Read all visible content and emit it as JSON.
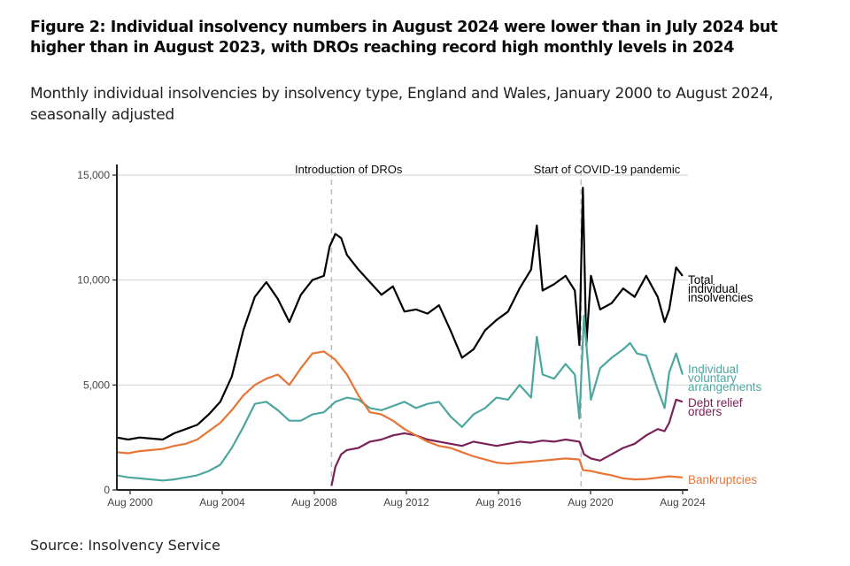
{
  "title": "Figure 2: Individual insolvency numbers in August 2024 were lower than in July 2024 but higher than in August 2023, with DROs reaching record high monthly levels in 2024",
  "subtitle": "Monthly individual insolvencies by insolvency type, England and Wales, January 2000 to August 2024, seasonally adjusted",
  "source": "Source: Insolvency Service",
  "chart_data": {
    "type": "line",
    "title": "Monthly individual insolvencies by insolvency type, England and Wales, January 2000 to August 2024, seasonally adjusted",
    "xlabel": "",
    "ylabel": "",
    "xlim": [
      2000.0,
      2024.67
    ],
    "ylim": [
      0,
      15000
    ],
    "grid": true,
    "x_ticks": [
      {
        "value": 2000.583,
        "label": "Aug 2000"
      },
      {
        "value": 2004.583,
        "label": "Aug 2004"
      },
      {
        "value": 2008.583,
        "label": "Aug 2008"
      },
      {
        "value": 2012.583,
        "label": "Aug 2012"
      },
      {
        "value": 2016.583,
        "label": "Aug 2016"
      },
      {
        "value": 2020.583,
        "label": "Aug 2020"
      },
      {
        "value": 2024.583,
        "label": "Aug 2024"
      }
    ],
    "y_ticks": [
      {
        "value": 0,
        "label": "0"
      },
      {
        "value": 5000,
        "label": "5,000"
      },
      {
        "value": 10000,
        "label": "10,000"
      },
      {
        "value": 15000,
        "label": "15,000"
      }
    ],
    "annotations": [
      {
        "x": 2009.33,
        "label": "Introduction of DROs"
      },
      {
        "x": 2020.17,
        "label": "Start of COVID-19 pandemic"
      }
    ],
    "legend": "direct-labels-right",
    "series": [
      {
        "name": "Total individual insolvencies",
        "label_lines": [
          "Total",
          "individual",
          "insolvencies"
        ],
        "color": "#000000",
        "x": [
          2000.0,
          2000.5,
          2001.0,
          2001.5,
          2002.0,
          2002.5,
          2003.0,
          2003.5,
          2004.0,
          2004.5,
          2005.0,
          2005.5,
          2006.0,
          2006.5,
          2007.0,
          2007.5,
          2008.0,
          2008.5,
          2009.0,
          2009.25,
          2009.5,
          2009.75,
          2010.0,
          2010.5,
          2011.0,
          2011.5,
          2012.0,
          2012.5,
          2013.0,
          2013.5,
          2014.0,
          2014.5,
          2015.0,
          2015.5,
          2016.0,
          2016.5,
          2017.0,
          2017.5,
          2018.0,
          2018.25,
          2018.5,
          2019.0,
          2019.5,
          2019.9,
          2020.1,
          2020.25,
          2020.4,
          2020.6,
          2021.0,
          2021.5,
          2022.0,
          2022.5,
          2023.0,
          2023.5,
          2023.8,
          2024.0,
          2024.3,
          2024.58
        ],
        "values": [
          2500,
          2400,
          2500,
          2450,
          2400,
          2700,
          2900,
          3100,
          3600,
          4200,
          5400,
          7600,
          9200,
          9900,
          9100,
          8000,
          9300,
          10000,
          10200,
          11600,
          12200,
          12000,
          11200,
          10500,
          9900,
          9300,
          9700,
          8500,
          8600,
          8400,
          8800,
          7600,
          6300,
          6700,
          7600,
          8100,
          8500,
          9600,
          10500,
          12600,
          9500,
          9800,
          10200,
          9500,
          6900,
          14400,
          6900,
          10200,
          8600,
          8900,
          9600,
          9200,
          10200,
          9200,
          8000,
          8600,
          10600,
          10200
        ]
      },
      {
        "name": "Individual voluntary arrangements",
        "label_lines": [
          "Individual",
          "voluntary",
          "arrangements"
        ],
        "color": "#4da79f",
        "x": [
          2000.0,
          2000.5,
          2001.0,
          2001.5,
          2002.0,
          2002.5,
          2003.0,
          2003.5,
          2004.0,
          2004.5,
          2005.0,
          2005.5,
          2006.0,
          2006.5,
          2007.0,
          2007.5,
          2008.0,
          2008.5,
          2009.0,
          2009.5,
          2010.0,
          2010.5,
          2011.0,
          2011.5,
          2012.0,
          2012.5,
          2013.0,
          2013.5,
          2014.0,
          2014.5,
          2015.0,
          2015.5,
          2016.0,
          2016.5,
          2017.0,
          2017.5,
          2018.0,
          2018.25,
          2018.5,
          2019.0,
          2019.5,
          2019.9,
          2020.1,
          2020.3,
          2020.6,
          2021.0,
          2021.5,
          2022.0,
          2022.3,
          2022.6,
          2023.0,
          2023.5,
          2023.8,
          2024.0,
          2024.3,
          2024.58
        ],
        "values": [
          700,
          600,
          550,
          500,
          450,
          500,
          600,
          700,
          900,
          1200,
          2000,
          3000,
          4100,
          4200,
          3800,
          3300,
          3300,
          3600,
          3700,
          4200,
          4400,
          4300,
          3900,
          3800,
          4000,
          4200,
          3900,
          4100,
          4200,
          3500,
          3000,
          3600,
          3900,
          4400,
          4300,
          5000,
          4400,
          7300,
          5500,
          5300,
          6000,
          5500,
          3400,
          8300,
          4300,
          5800,
          6300,
          6700,
          7000,
          6500,
          6400,
          4800,
          3900,
          5600,
          6500,
          5500
        ]
      },
      {
        "name": "Debt relief orders",
        "label_lines": [
          "Debt relief",
          "orders"
        ],
        "color": "#7a2257",
        "x": [
          2009.33,
          2009.5,
          2009.75,
          2010.0,
          2010.5,
          2011.0,
          2011.5,
          2012.0,
          2012.5,
          2013.0,
          2013.5,
          2014.0,
          2014.5,
          2015.0,
          2015.5,
          2016.0,
          2016.5,
          2017.0,
          2017.5,
          2018.0,
          2018.5,
          2019.0,
          2019.5,
          2020.1,
          2020.3,
          2020.6,
          2021.0,
          2021.5,
          2022.0,
          2022.5,
          2023.0,
          2023.5,
          2023.8,
          2024.0,
          2024.3,
          2024.58
        ],
        "values": [
          200,
          1100,
          1700,
          1900,
          2000,
          2300,
          2400,
          2600,
          2700,
          2600,
          2400,
          2300,
          2200,
          2100,
          2300,
          2200,
          2100,
          2200,
          2300,
          2250,
          2350,
          2300,
          2400,
          2300,
          1700,
          1500,
          1400,
          1700,
          2000,
          2200,
          2600,
          2900,
          2800,
          3200,
          4300,
          4200
        ]
      },
      {
        "name": "Bankruptcies",
        "label_lines": [
          "Bankruptcies"
        ],
        "color": "#e87536",
        "x": [
          2000.0,
          2000.5,
          2001.0,
          2001.5,
          2002.0,
          2002.5,
          2003.0,
          2003.5,
          2004.0,
          2004.5,
          2005.0,
          2005.5,
          2006.0,
          2006.5,
          2007.0,
          2007.5,
          2008.0,
          2008.5,
          2009.0,
          2009.5,
          2010.0,
          2010.5,
          2011.0,
          2011.5,
          2012.0,
          2012.5,
          2013.0,
          2013.5,
          2014.0,
          2014.5,
          2015.0,
          2015.5,
          2016.0,
          2016.5,
          2017.0,
          2017.5,
          2018.0,
          2018.5,
          2019.0,
          2019.5,
          2020.1,
          2020.25,
          2020.6,
          2021.0,
          2021.5,
          2022.0,
          2022.5,
          2023.0,
          2023.5,
          2024.0,
          2024.58
        ],
        "values": [
          1800,
          1750,
          1850,
          1900,
          1950,
          2100,
          2200,
          2400,
          2800,
          3200,
          3800,
          4500,
          5000,
          5300,
          5500,
          5000,
          5800,
          6500,
          6600,
          6200,
          5500,
          4500,
          3700,
          3600,
          3300,
          2900,
          2600,
          2300,
          2100,
          2000,
          1800,
          1600,
          1450,
          1300,
          1250,
          1300,
          1350,
          1400,
          1450,
          1500,
          1450,
          950,
          900,
          800,
          700,
          550,
          500,
          520,
          580,
          650,
          600
        ]
      }
    ]
  }
}
